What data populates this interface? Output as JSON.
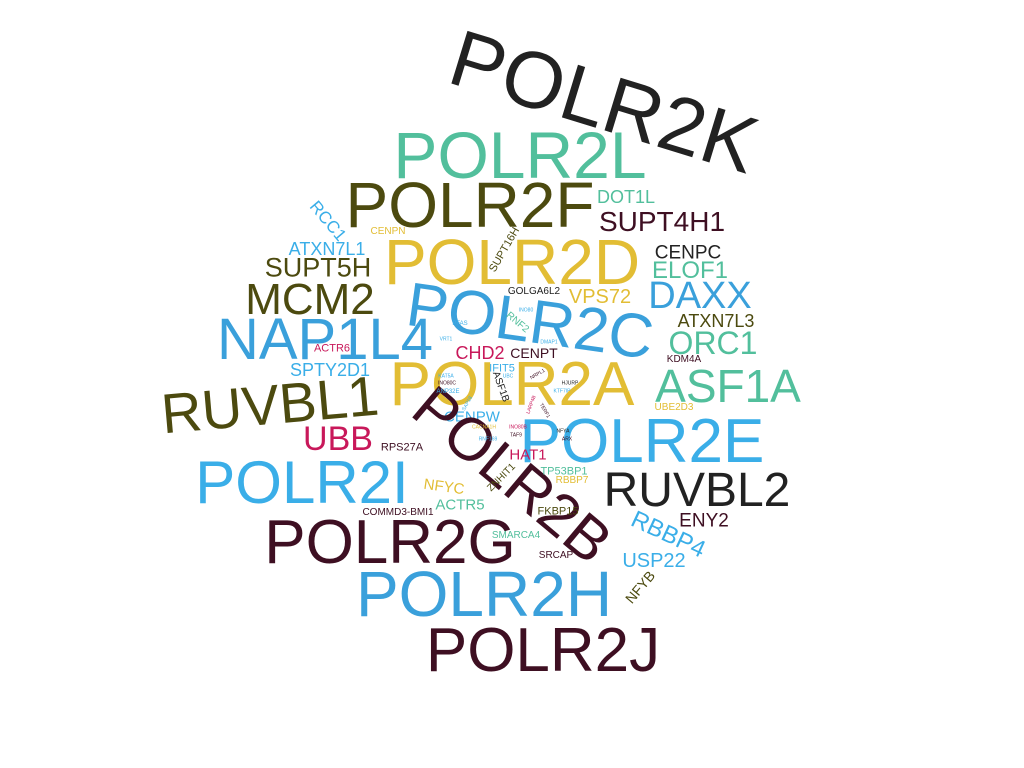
{
  "words": [
    {
      "text": "POLR2K",
      "color": "#222222"
    },
    {
      "text": "POLR2L",
      "color": "#52bf9c"
    },
    {
      "text": "POLR2F",
      "color": "#4c4a0f"
    },
    {
      "text": "DOT1L",
      "color": "#52bf9c"
    },
    {
      "text": "SUPT4H1",
      "color": "#3e0f22"
    },
    {
      "text": "RCC1",
      "color": "#3aaee8"
    },
    {
      "text": "CENPN",
      "color": "#e2bd34"
    },
    {
      "text": "ATXN7L1",
      "color": "#3aaee8"
    },
    {
      "text": "POLR2D",
      "color": "#e2bd34"
    },
    {
      "text": "SUPT16H",
      "color": "#4c4a0f"
    },
    {
      "text": "CENPC",
      "color": "#222222"
    },
    {
      "text": "SUPT5H",
      "color": "#4c4a0f"
    },
    {
      "text": "ELOF1",
      "color": "#52bf9c"
    },
    {
      "text": "MCM2",
      "color": "#4c4a0f"
    },
    {
      "text": "GOLGA6L2",
      "color": "#222222"
    },
    {
      "text": "VPS72",
      "color": "#e2bd34"
    },
    {
      "text": "DAXX",
      "color": "#3aa0db"
    },
    {
      "text": "POLR2C",
      "color": "#3aa0db"
    },
    {
      "text": "ATXN7L3",
      "color": "#4c4a0f"
    },
    {
      "text": "NAP1L4",
      "color": "#3aa0db"
    },
    {
      "text": "ORC1",
      "color": "#52bf9c"
    },
    {
      "text": "ACTR6",
      "color": "#c8185a"
    },
    {
      "text": "CHD2",
      "color": "#c8185a"
    },
    {
      "text": "CENPT",
      "color": "#3e0f22"
    },
    {
      "text": "KDM4A",
      "color": "#3e0f22"
    },
    {
      "text": "SPTY2D1",
      "color": "#3aaee8"
    },
    {
      "text": "POLR2A",
      "color": "#e2bd34"
    },
    {
      "text": "ASF1A",
      "color": "#52bf9c"
    },
    {
      "text": "IFIT5",
      "color": "#3aaee8"
    },
    {
      "text": "RUVBL1",
      "color": "#4c4a0f"
    },
    {
      "text": "ASF1B",
      "color": "#222222"
    },
    {
      "text": "UBE2D3",
      "color": "#e2bd34"
    },
    {
      "text": "CENPW",
      "color": "#3aaee8"
    },
    {
      "text": "UBB",
      "color": "#c8185a"
    },
    {
      "text": "POLR2E",
      "color": "#3aaee8"
    },
    {
      "text": "RPS27A",
      "color": "#3e0f22"
    },
    {
      "text": "POLR2B",
      "color": "#3e0f22"
    },
    {
      "text": "HAT1",
      "color": "#c8185a"
    },
    {
      "text": "POLR2I",
      "color": "#3aaee8"
    },
    {
      "text": "TP53BP1",
      "color": "#52bf9c"
    },
    {
      "text": "NFYC",
      "color": "#e2bd34"
    },
    {
      "text": "ZNHIT1",
      "color": "#4c4a0f"
    },
    {
      "text": "RBBP7",
      "color": "#e2bd34"
    },
    {
      "text": "RUVBL2",
      "color": "#222222"
    },
    {
      "text": "ACTR5",
      "color": "#52bf9c"
    },
    {
      "text": "COMMD3-BMI1",
      "color": "#3e0f22"
    },
    {
      "text": "FKBP15",
      "color": "#4c4a0f"
    },
    {
      "text": "RBBP4",
      "color": "#3aaee8"
    },
    {
      "text": "ENY2",
      "color": "#3e0f22"
    },
    {
      "text": "POLR2G",
      "color": "#3e0f22"
    },
    {
      "text": "SMARCA4",
      "color": "#52bf9c"
    },
    {
      "text": "SRCAP",
      "color": "#3e0f22"
    },
    {
      "text": "USP22",
      "color": "#3aaee8"
    },
    {
      "text": "POLR2H",
      "color": "#3aa0db"
    },
    {
      "text": "NFYB",
      "color": "#4c4a0f"
    },
    {
      "text": "POLR2J",
      "color": "#3e0f22"
    },
    {
      "text": "RNF2",
      "color": "#52bf9c"
    },
    {
      "text": "INO80",
      "color": "#3aaee8"
    },
    {
      "text": "PFAS",
      "color": "#3aaee8"
    },
    {
      "text": "DMAP1",
      "color": "#3aaee8"
    },
    {
      "text": "VRT1",
      "color": "#3aaee8"
    },
    {
      "text": "NRPL1",
      "color": "#3e0f22"
    },
    {
      "text": "HJURP",
      "color": "#222222"
    },
    {
      "text": "KAT5A",
      "color": "#3aaee8"
    },
    {
      "text": "INO80C",
      "color": "#3e0f22"
    },
    {
      "text": "ANP32E",
      "color": "#3aaee8"
    },
    {
      "text": "UBC",
      "color": "#3aaee8"
    },
    {
      "text": "KTF7IP",
      "color": "#3aaee8"
    },
    {
      "text": "LARP4B",
      "color": "#c8185a"
    },
    {
      "text": "TERF1",
      "color": "#3e0f22"
    },
    {
      "text": "INO80B",
      "color": "#c8185a"
    },
    {
      "text": "NFYA",
      "color": "#222222"
    },
    {
      "text": "ARX",
      "color": "#3e0f22"
    },
    {
      "text": "TAF9",
      "color": "#3e0f22"
    },
    {
      "text": "CACNA1H",
      "color": "#e2bd34"
    },
    {
      "text": "RNF169",
      "color": "#3aaee8"
    },
    {
      "text": "SAP18",
      "color": "#3aaee8"
    }
  ]
}
